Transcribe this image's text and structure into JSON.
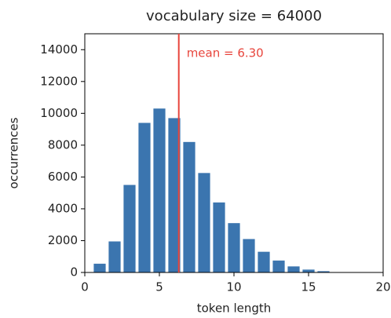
{
  "chart_data": {
    "type": "bar",
    "title": "vocabulary size = 64000",
    "x_label": "token length",
    "y_label": "occurrences",
    "x": [
      1,
      2,
      3,
      4,
      5,
      6,
      7,
      8,
      9,
      10,
      11,
      12,
      13,
      14,
      15,
      16
    ],
    "values": [
      550,
      1950,
      5500,
      9400,
      10300,
      9700,
      8200,
      6250,
      4400,
      3100,
      2100,
      1300,
      750,
      380,
      180,
      80
    ],
    "color": "#3b75af",
    "xlim": [
      0,
      20
    ],
    "xticks": [
      0,
      5,
      10,
      15,
      20
    ],
    "ylim": [
      0,
      15000
    ],
    "yticks": [
      0,
      2000,
      4000,
      6000,
      8000,
      10000,
      12000,
      14000
    ],
    "mean": {
      "value": 6.3,
      "label": "mean = 6.30",
      "color": "#e8453c"
    }
  }
}
